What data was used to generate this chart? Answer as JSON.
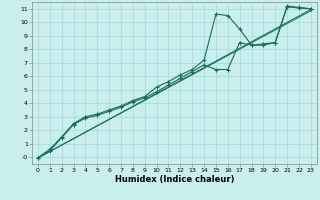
{
  "xlabel": "Humidex (Indice chaleur)",
  "background_color": "#c8eeee",
  "grid_color": "#a8d8d8",
  "line_color": "#1a6b5a",
  "xlim": [
    -0.5,
    23.5
  ],
  "ylim": [
    -0.5,
    11.5
  ],
  "xticks": [
    0,
    1,
    2,
    3,
    4,
    5,
    6,
    7,
    8,
    9,
    10,
    11,
    12,
    13,
    14,
    15,
    16,
    17,
    18,
    19,
    20,
    21,
    22,
    23
  ],
  "yticks": [
    0,
    1,
    2,
    3,
    4,
    5,
    6,
    7,
    8,
    9,
    10,
    11
  ],
  "ytick_labels": [
    "-0",
    "1",
    "2",
    "3",
    "4",
    "5",
    "6",
    "7",
    "8",
    "9",
    "10",
    "11"
  ],
  "line1_x": [
    0,
    1,
    2,
    3,
    4,
    5,
    6,
    7,
    8,
    9,
    10,
    11,
    12,
    13,
    14,
    15,
    16,
    17,
    18,
    19,
    20,
    21,
    22,
    23
  ],
  "line1_y": [
    -0.05,
    0.6,
    1.5,
    2.5,
    3.0,
    3.2,
    3.5,
    3.8,
    4.2,
    4.5,
    5.2,
    5.6,
    6.1,
    6.5,
    7.2,
    10.6,
    10.5,
    9.5,
    8.3,
    8.4,
    8.5,
    11.2,
    11.1,
    11.0
  ],
  "line2_x": [
    0,
    1,
    2,
    3,
    4,
    5,
    6,
    7,
    8,
    9,
    10,
    11,
    12,
    13,
    14,
    15,
    16,
    17,
    18,
    19,
    20,
    21,
    22,
    23
  ],
  "line2_y": [
    -0.05,
    0.48,
    1.45,
    2.42,
    2.9,
    3.1,
    3.4,
    3.7,
    4.1,
    4.4,
    4.85,
    5.35,
    5.85,
    6.35,
    6.85,
    6.5,
    6.5,
    8.5,
    8.3,
    8.3,
    8.5,
    11.15,
    11.05,
    11.0
  ],
  "trend1_x": [
    0,
    23
  ],
  "trend1_y": [
    -0.05,
    10.95
  ],
  "trend2_x": [
    0,
    23
  ],
  "trend2_y": [
    -0.05,
    10.85
  ]
}
